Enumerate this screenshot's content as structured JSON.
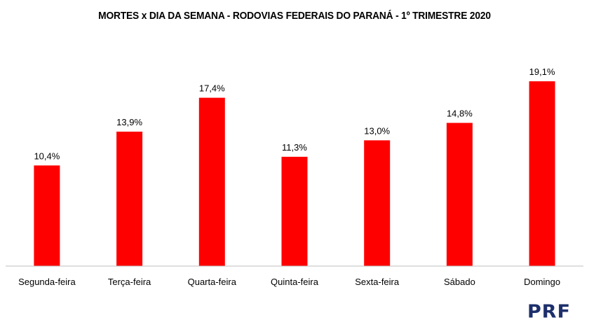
{
  "chart_data": {
    "type": "bar",
    "title": "MORTES x DIA DA SEMANA - RODOVIAS FEDERAIS DO PARANÁ - 1º TRIMESTRE 2020",
    "categories": [
      "Segunda-feira",
      "Terça-feira",
      "Quarta-feira",
      "Quinta-feira",
      "Sexta-feira",
      "Sábado",
      "Domingo"
    ],
    "values": [
      10.4,
      13.9,
      17.4,
      11.3,
      13.0,
      14.8,
      19.1
    ],
    "data_labels": [
      "10,4%",
      "13,9%",
      "17,4%",
      "11,3%",
      "13,0%",
      "14,8%",
      "19,1%"
    ],
    "ylim": [
      0,
      20.7
    ],
    "grid": false,
    "bar_color": "#ff0000",
    "axis_color": "#bfbfbf"
  },
  "logo": {
    "text": "PRF",
    "color": "#1d2f6b"
  }
}
